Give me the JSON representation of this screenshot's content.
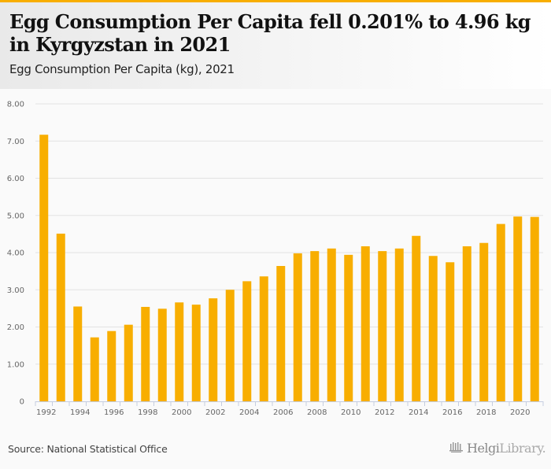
{
  "header": {
    "title": "Egg Consumption Per Capita fell 0.201% to 4.96 kg in Kyrgyzstan in 2021",
    "subtitle": "Egg Consumption Per Capita (kg), 2021"
  },
  "footer": {
    "source": "Source: National Statistical Office",
    "logo_bold": "Helgi",
    "logo_light": "Library."
  },
  "colors": {
    "accent": "#f8ae00",
    "bar": "#f8ae00",
    "grid": "#e2e2e2",
    "axis": "#c5cde0"
  },
  "chart_data": {
    "type": "bar",
    "title": "Egg Consumption Per Capita fell 0.201% to 4.96 kg in Kyrgyzstan in 2021",
    "subtitle": "Egg Consumption Per Capita (kg), 2021",
    "xlabel": "",
    "ylabel": "",
    "ylim": [
      0,
      8
    ],
    "yticks": [
      0,
      1,
      2,
      3,
      4,
      5,
      6,
      7,
      8
    ],
    "ytick_labels": [
      "0",
      "1.00",
      "2.00",
      "3.00",
      "4.00",
      "5.00",
      "6.00",
      "7.00",
      "8.00"
    ],
    "grid": true,
    "legend": "none",
    "categories": [
      "1992",
      "1993",
      "1994",
      "1995",
      "1996",
      "1997",
      "1998",
      "1999",
      "2000",
      "2001",
      "2002",
      "2003",
      "2004",
      "2005",
      "2006",
      "2007",
      "2008",
      "2009",
      "2010",
      "2011",
      "2012",
      "2013",
      "2014",
      "2015",
      "2016",
      "2017",
      "2018",
      "2019",
      "2020",
      "2021"
    ],
    "xtick_labels": [
      "1992",
      "1994",
      "1996",
      "1998",
      "2000",
      "2002",
      "2004",
      "2006",
      "2008",
      "2010",
      "2012",
      "2014",
      "2016",
      "2018",
      "2020"
    ],
    "series": [
      {
        "name": "Egg Consumption Per Capita (kg)",
        "values": [
          7.17,
          4.51,
          2.55,
          1.72,
          1.89,
          2.06,
          2.54,
          2.49,
          2.66,
          2.6,
          2.77,
          3.0,
          3.23,
          3.36,
          3.64,
          3.98,
          4.04,
          4.11,
          3.94,
          4.17,
          4.04,
          4.11,
          4.45,
          3.91,
          3.74,
          4.17,
          4.26,
          4.77,
          4.97,
          4.96
        ]
      }
    ],
    "source": "Source: National Statistical Office"
  }
}
